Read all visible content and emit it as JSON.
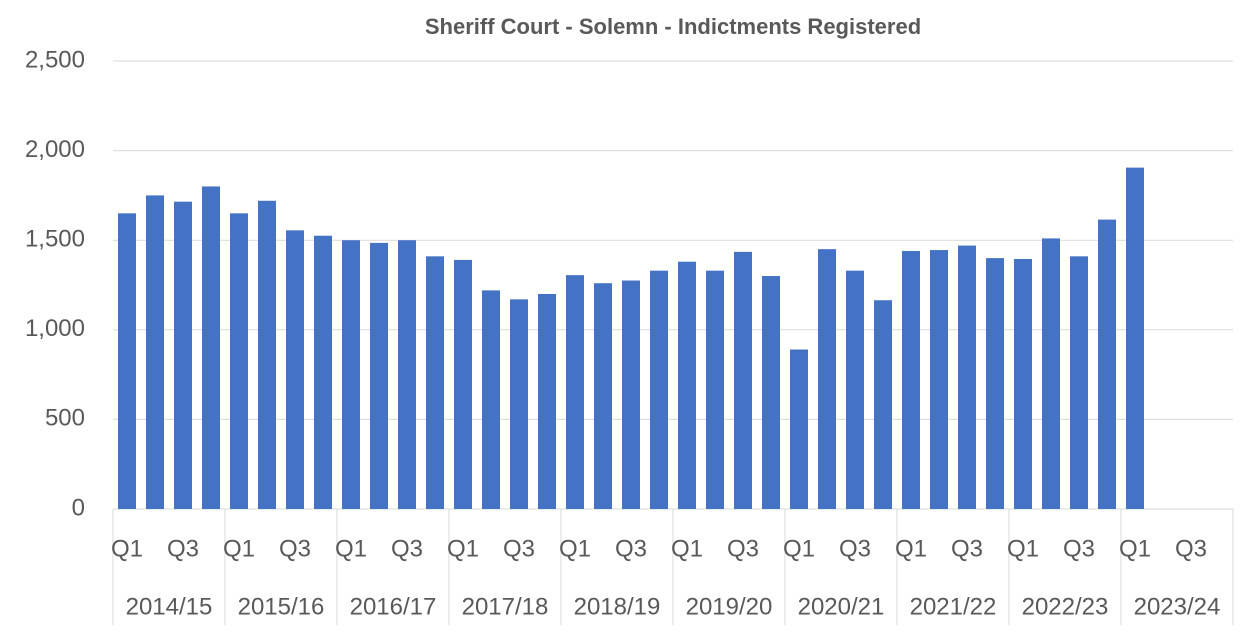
{
  "chart_data": {
    "type": "bar",
    "title": "Sheriff Court - Solemn - Indictments Registered",
    "categories": [
      "Q1",
      null,
      "Q3",
      null,
      "Q1",
      null,
      "Q3",
      null,
      "Q1",
      null,
      "Q3",
      null,
      "Q1",
      null,
      "Q3",
      null,
      "Q1",
      null,
      "Q3",
      null,
      "Q1",
      null,
      "Q3",
      null,
      "Q1",
      null,
      "Q3",
      null,
      "Q1",
      null,
      "Q3",
      null,
      "Q1",
      null,
      "Q3",
      null,
      "Q1",
      null,
      "Q3",
      null
    ],
    "groups": [
      "2014/15",
      "2015/16",
      "2016/17",
      "2017/18",
      "2018/19",
      "2019/20",
      "2020/21",
      "2021/22",
      "2022/23",
      "2023/24"
    ],
    "values": [
      1650,
      1750,
      1715,
      1800,
      1650,
      1720,
      1555,
      1525,
      1500,
      1485,
      1500,
      1410,
      1390,
      1220,
      1170,
      1200,
      1305,
      1260,
      1275,
      1330,
      1380,
      1330,
      1435,
      1300,
      890,
      1450,
      1330,
      1165,
      1440,
      1445,
      1470,
      1400,
      1395,
      1510,
      1410,
      1615,
      1905,
      null,
      null,
      null
    ],
    "color": "#4472c4",
    "ylim": [
      0,
      2500
    ],
    "yticks": [
      0,
      500,
      {
        "value": 1000,
        "label": "1,000"
      },
      {
        "value": 1500,
        "label": "1,500"
      },
      {
        "value": 2000,
        "label": "2,000"
      },
      {
        "value": 2500,
        "label": "2,500"
      }
    ],
    "grid": true
  }
}
